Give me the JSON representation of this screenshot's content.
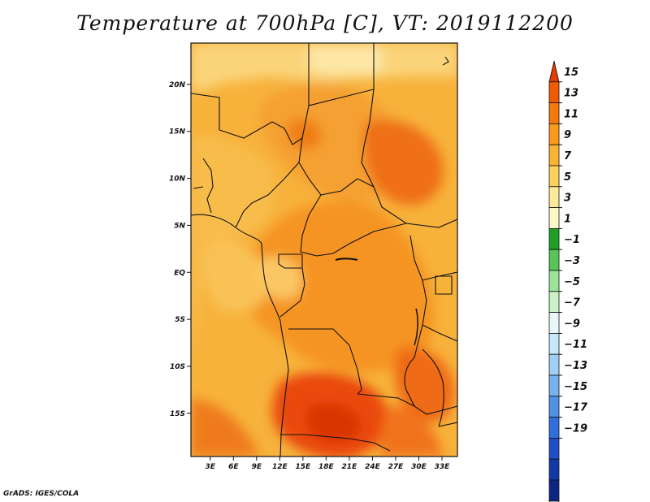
{
  "title": "Temperature at 700hPa [C], VT: 2019112200",
  "credit": "GrADS: IGES/COLA",
  "map": {
    "lat_labels": [
      {
        "lat": 20,
        "text": "20N"
      },
      {
        "lat": 15,
        "text": "15N"
      },
      {
        "lat": 10,
        "text": "10N"
      },
      {
        "lat": 5,
        "text": "5N"
      },
      {
        "lat": 0,
        "text": "EQ"
      },
      {
        "lat": -5,
        "text": "5S"
      },
      {
        "lat": -10,
        "text": "10S"
      },
      {
        "lat": -15,
        "text": "15S"
      }
    ],
    "lon_labels": [
      {
        "lon": 3,
        "text": "3E"
      },
      {
        "lon": 6,
        "text": "6E"
      },
      {
        "lon": 9,
        "text": "9E"
      },
      {
        "lon": 12,
        "text": "12E"
      },
      {
        "lon": 15,
        "text": "15E"
      },
      {
        "lon": 18,
        "text": "18E"
      },
      {
        "lon": 21,
        "text": "21E"
      },
      {
        "lon": 24,
        "text": "24E"
      },
      {
        "lon": 27,
        "text": "27E"
      },
      {
        "lon": 30,
        "text": "30E"
      },
      {
        "lon": 33,
        "text": "33E"
      }
    ],
    "lon_range": [
      0.5,
      35
    ],
    "lat_range": [
      -19.6,
      24.4
    ]
  },
  "colorbar": {
    "labels": [
      "15",
      "13",
      "11",
      "9",
      "7",
      "5",
      "3",
      "1",
      "−1",
      "−3",
      "−5",
      "−7",
      "−9",
      "−11",
      "−13",
      "−15",
      "−17",
      "−19"
    ],
    "colors": [
      "#e43c00",
      "#f05a00",
      "#f5780a",
      "#f99a18",
      "#fbb432",
      "#fdd05e",
      "#fde99a",
      "#fdf6c8",
      "#1fa023",
      "#56c556",
      "#9ce39a",
      "#c9f3c4",
      "#e7f6f9",
      "#c4e8f9",
      "#a0d0f5",
      "#75b2ef",
      "#4e93e6",
      "#2f6fdb",
      "#1f4fc6",
      "#123aa7",
      "#0b2683",
      "#e0e0f4"
    ]
  }
}
